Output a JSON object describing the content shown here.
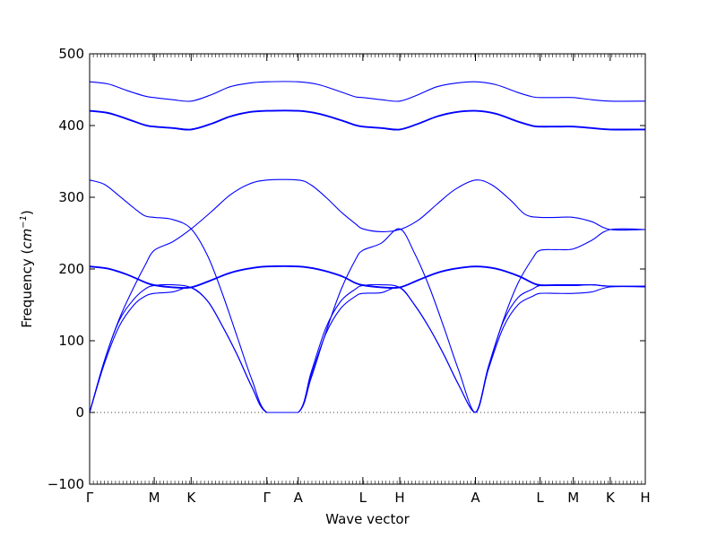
{
  "chart_data": {
    "type": "line",
    "title": "",
    "xlabel": "Wave vector",
    "ylabel": "Frequency ($cm^{-1}$)",
    "ylabel_parts": {
      "text": "Frequency (",
      "unit_base": "cm",
      "unit_exp": "−1",
      "close": ")"
    },
    "ylim": [
      -100,
      500
    ],
    "yticks": [
      -100,
      0,
      100,
      200,
      300,
      400,
      500
    ],
    "ytick_labels": [
      "−100",
      "0",
      "100",
      "200",
      "300",
      "400",
      "500"
    ],
    "xlim": [
      0,
      15.05
    ],
    "high_symmetry_points": [
      {
        "label": "Γ",
        "x": 0.0
      },
      {
        "label": "M",
        "x": 1.75
      },
      {
        "label": "K",
        "x": 2.75
      },
      {
        "label": "Γ",
        "x": 4.8
      },
      {
        "label": "A",
        "x": 5.65
      },
      {
        "label": "L",
        "x": 7.4
      },
      {
        "label": "H",
        "x": 8.4
      },
      {
        "label": "A",
        "x": 10.45
      },
      {
        "label": "L",
        "x": 12.2
      },
      {
        "label": "M",
        "x": 13.1
      },
      {
        "label": "K",
        "x": 14.1
      },
      {
        "label": "H",
        "x": 15.05
      }
    ],
    "zero_line": 0,
    "line_color": "#0000ff",
    "series": [
      {
        "x": [
          0,
          0.4,
          0.8,
          1.2,
          1.5,
          1.75,
          2.25,
          2.75,
          3.2,
          3.6,
          4.0,
          4.4,
          4.8,
          5.65,
          6.0,
          6.4,
          6.8,
          7.2,
          7.4,
          7.9,
          8.4,
          8.8,
          9.2,
          9.6,
          10.0,
          10.45,
          10.8,
          11.2,
          11.6,
          12.0,
          12.2,
          12.65,
          13.1,
          13.6,
          14.1,
          15.05
        ],
        "y": [
          0,
          68,
          120,
          150,
          162,
          166,
          168,
          174,
          155,
          120,
          80,
          35,
          0,
          0,
          52,
          110,
          145,
          162,
          166,
          167,
          174,
          150,
          118,
          80,
          38,
          0,
          60,
          118,
          150,
          162,
          166,
          166,
          166,
          168,
          175,
          175
        ]
      },
      {
        "x": [
          0,
          0.4,
          0.8,
          1.2,
          1.5,
          1.75,
          2.25,
          2.75,
          3.2,
          3.6,
          4.0,
          4.4,
          4.8,
          5.65,
          6.0,
          6.4,
          6.8,
          7.2,
          7.4,
          7.9,
          8.4,
          8.8,
          9.2,
          9.6,
          10.0,
          10.45,
          10.8,
          11.2,
          11.6,
          12.0,
          12.2,
          12.65,
          13.1,
          13.6,
          14.1,
          15.05
        ],
        "y": [
          0,
          72,
          128,
          158,
          172,
          177,
          178,
          174,
          155,
          120,
          80,
          35,
          0,
          0,
          56,
          118,
          155,
          172,
          177,
          178,
          174,
          150,
          118,
          80,
          38,
          0,
          64,
          126,
          160,
          172,
          177,
          177,
          177,
          178,
          176,
          176
        ]
      },
      {
        "x": [
          0,
          0.5,
          1.0,
          1.5,
          1.75,
          2.25,
          2.75,
          3.3,
          3.8,
          4.3,
          4.8,
          5.65,
          6.2,
          6.8,
          7.2,
          7.4,
          7.9,
          8.4,
          8.9,
          9.4,
          9.9,
          10.45,
          11.0,
          11.6,
          12.0,
          12.2,
          12.65,
          13.1,
          13.6,
          14.1,
          15.05
        ],
        "y": [
          203,
          200,
          192,
          181,
          177,
          174,
          174,
          184,
          194,
          200,
          203,
          203,
          199,
          190,
          180,
          177,
          174,
          174,
          184,
          194,
          200,
          203,
          200,
          190,
          180,
          177,
          177,
          177,
          178,
          176,
          176
        ]
      },
      {
        "x": [
          0,
          0.5,
          1.0,
          1.5,
          1.75,
          2.25,
          2.75,
          3.3,
          3.8,
          4.3,
          4.8,
          5.65,
          6.2,
          6.8,
          7.2,
          7.4,
          7.9,
          8.4,
          8.9,
          9.4,
          9.9,
          10.45,
          11.0,
          11.6,
          12.0,
          12.2,
          12.65,
          13.1,
          13.6,
          14.1,
          15.05
        ],
        "y": [
          204,
          201,
          193,
          182,
          178,
          175,
          175,
          185,
          195,
          201,
          204,
          204,
          200,
          191,
          181,
          178,
          175,
          175,
          185,
          195,
          201,
          204,
          201,
          191,
          181,
          178,
          178,
          178,
          178,
          176,
          176
        ]
      },
      {
        "x": [
          0,
          0.4,
          0.8,
          1.2,
          1.5,
          1.75,
          2.25,
          2.75,
          3.3,
          3.8,
          4.3,
          4.8,
          5.65,
          6.0,
          6.4,
          6.8,
          7.2,
          7.4,
          7.9,
          8.4,
          8.9,
          9.4,
          9.9,
          10.45,
          10.9,
          11.4,
          11.8,
          12.2,
          12.65,
          13.1,
          13.6,
          14.1,
          15.05
        ],
        "y": [
          0,
          72,
          130,
          175,
          205,
          226,
          238,
          256,
          280,
          303,
          318,
          324,
          324,
          317,
          300,
          280,
          263,
          256,
          252,
          255,
          268,
          290,
          311,
          324,
          317,
          296,
          276,
          272,
          272,
          272,
          266,
          255,
          255
        ]
      },
      {
        "x": [
          0,
          0.4,
          0.8,
          1.2,
          1.5,
          1.75,
          2.25,
          2.75,
          3.2,
          3.6,
          4.0,
          4.4,
          4.8,
          5.65,
          6.0,
          6.4,
          6.8,
          7.2,
          7.4,
          7.9,
          8.4,
          8.8,
          9.2,
          9.6,
          10.0,
          10.45,
          10.8,
          11.2,
          11.6,
          12.0,
          12.2,
          12.65,
          13.1,
          13.6,
          14.1,
          15.05
        ],
        "y": [
          324,
          318,
          302,
          285,
          274,
          272,
          269,
          256,
          218,
          165,
          105,
          45,
          0,
          0,
          48,
          112,
          170,
          213,
          226,
          236,
          256,
          222,
          175,
          118,
          58,
          0,
          62,
          128,
          180,
          215,
          226,
          227,
          228,
          240,
          255,
          255
        ]
      },
      {
        "x": [
          0,
          0.5,
          1.0,
          1.5,
          1.75,
          2.25,
          2.75,
          3.3,
          3.8,
          4.3,
          4.8,
          5.65,
          6.2,
          6.8,
          7.2,
          7.4,
          7.9,
          8.4,
          8.9,
          9.4,
          9.9,
          10.45,
          11.0,
          11.6,
          12.0,
          12.2,
          12.65,
          13.1,
          13.6,
          14.1,
          15.05
        ],
        "y": [
          420,
          417,
          409,
          400,
          398,
          396,
          394,
          402,
          412,
          418,
          420,
          420,
          416,
          407,
          400,
          398,
          396,
          394,
          402,
          412,
          418,
          420,
          416,
          405,
          399,
          398,
          398,
          398,
          396,
          394,
          394
        ]
      },
      {
        "x": [
          0,
          0.5,
          1.0,
          1.5,
          1.75,
          2.25,
          2.75,
          3.3,
          3.8,
          4.3,
          4.8,
          5.65,
          6.2,
          6.8,
          7.2,
          7.4,
          7.9,
          8.4,
          8.9,
          9.4,
          9.9,
          10.45,
          11.0,
          11.6,
          12.0,
          12.2,
          12.65,
          13.1,
          13.6,
          14.1,
          15.05
        ],
        "y": [
          421,
          418,
          410,
          401,
          399,
          397,
          395,
          403,
          413,
          419,
          421,
          421,
          417,
          408,
          401,
          399,
          397,
          395,
          403,
          413,
          419,
          421,
          417,
          406,
          400,
          399,
          399,
          399,
          397,
          395,
          395
        ]
      },
      {
        "x": [
          0,
          0.5,
          1.0,
          1.5,
          1.75,
          2.25,
          2.75,
          3.3,
          3.8,
          4.3,
          4.8,
          5.65,
          6.2,
          6.8,
          7.2,
          7.4,
          7.9,
          8.4,
          8.9,
          9.4,
          9.9,
          10.45,
          11.0,
          11.6,
          12.0,
          12.2,
          12.65,
          13.1,
          13.6,
          14.1,
          15.05
        ],
        "y": [
          461,
          458,
          449,
          441,
          439,
          436,
          434,
          443,
          454,
          459,
          461,
          461,
          457,
          447,
          440,
          439,
          436,
          434,
          443,
          454,
          459,
          461,
          457,
          446,
          440,
          439,
          439,
          439,
          436,
          434,
          434
        ]
      }
    ]
  }
}
